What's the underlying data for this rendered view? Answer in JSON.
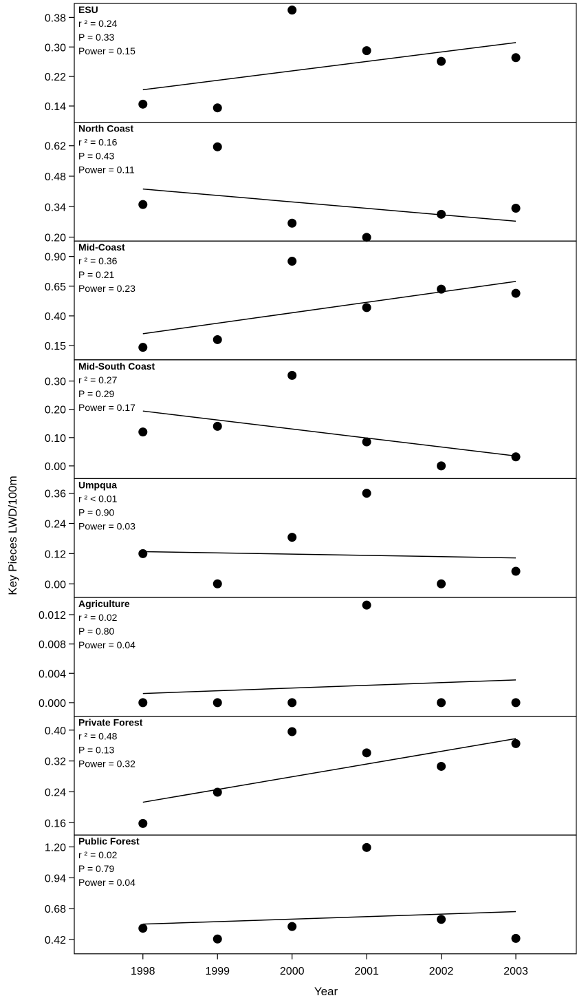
{
  "chart_data": {
    "type": "scatter",
    "xlabel": "Year",
    "ylabel": "Key Pieces LWD/100m",
    "x_ticks": [
      "1998",
      "1999",
      "2000",
      "2001",
      "2002",
      "2003"
    ],
    "xlim": [
      1997.08,
      2003.82
    ],
    "grid": false,
    "panels": [
      {
        "title": "ESU",
        "stats": [
          "r ² = 0.24",
          "P = 0.33",
          "Power = 0.15"
        ],
        "ylim": [
          0.096,
          0.418
        ],
        "yticks": [
          0.14,
          0.22,
          0.3,
          0.38
        ],
        "ytick_labels": [
          "0.14",
          "0.22",
          "0.30",
          "0.38"
        ],
        "x": [
          1998,
          1999,
          2000,
          2001,
          2002,
          2003
        ],
        "y": [
          0.145,
          0.135,
          0.4,
          0.29,
          0.261,
          0.271
        ],
        "fit": [
          [
            1998,
            0.184
          ],
          [
            2003,
            0.312
          ]
        ]
      },
      {
        "title": "North Coast",
        "stats": [
          " r ² = 0.16",
          " P = 0.43",
          " Power = 0.11"
        ],
        "ylim": [
          0.182,
          0.728
        ],
        "yticks": [
          0.2,
          0.34,
          0.48,
          0.62
        ],
        "ytick_labels": [
          "0.20",
          "0.34",
          "0.48",
          "0.62"
        ],
        "x": [
          1998,
          1999,
          2000,
          2001,
          2002,
          2003
        ],
        "y": [
          0.35,
          0.615,
          0.264,
          0.199,
          0.305,
          0.333
        ],
        "fit": [
          [
            1998,
            0.421
          ],
          [
            2003,
            0.273
          ]
        ]
      },
      {
        "title": "Mid-Coast",
        "stats": [
          " r ² = 0.36",
          "P = 0.21",
          "Power = 0.23"
        ],
        "ylim": [
          0.03,
          1.03
        ],
        "yticks": [
          0.15,
          0.4,
          0.65,
          0.9
        ],
        "ytick_labels": [
          "0.15",
          "0.40",
          "0.65",
          "0.90"
        ],
        "x": [
          1998,
          1999,
          2000,
          2001,
          2002,
          2003
        ],
        "y": [
          0.135,
          0.2,
          0.86,
          0.47,
          0.625,
          0.59
        ],
        "fit": [
          [
            1998,
            0.25
          ],
          [
            2003,
            0.69
          ]
        ]
      },
      {
        "title": "Mid-South Coast",
        "stats": [
          "r ² = 0.27",
          "P = 0.29",
          "Power = 0.17"
        ],
        "ylim": [
          -0.045,
          0.375
        ],
        "yticks": [
          0.0,
          0.1,
          0.2,
          0.3
        ],
        "ytick_labels": [
          "0.00",
          "0.10",
          "0.20",
          "0.30"
        ],
        "x": [
          1998,
          1999,
          2000,
          2001,
          2002,
          2003
        ],
        "y": [
          0.12,
          0.14,
          0.32,
          0.085,
          0.0,
          0.032
        ],
        "fit": [
          [
            1998,
            0.194
          ],
          [
            2003,
            0.035
          ]
        ]
      },
      {
        "title": "Umpqua",
        "stats": [
          "r ² < 0.01",
          " P = 0.90",
          " Power = 0.03"
        ],
        "ylim": [
          -0.054,
          0.418
        ],
        "yticks": [
          0.0,
          0.12,
          0.24,
          0.36
        ],
        "ytick_labels": [
          "0.00",
          "0.12",
          "0.24",
          "0.36"
        ],
        "x": [
          1998,
          1999,
          2000,
          2001,
          2002,
          2003
        ],
        "y": [
          0.12,
          0.0,
          0.185,
          0.36,
          0.0,
          0.05
        ],
        "fit": [
          [
            1998,
            0.128
          ],
          [
            2003,
            0.103
          ]
        ]
      },
      {
        "title": "Agriculture",
        "stats": [
          "r ² = 0.02",
          " P = 0.80",
          " Power = 0.04"
        ],
        "ylim": [
          -0.00185,
          0.01435
        ],
        "yticks": [
          0.0,
          0.004,
          0.008,
          0.012
        ],
        "ytick_labels": [
          "0.000",
          "0.004",
          "0.008",
          "0.012"
        ],
        "x": [
          1998,
          1999,
          2000,
          2001,
          2002,
          2003
        ],
        "y": [
          0.0,
          0.0,
          0.0,
          0.0133,
          0.0,
          0.0
        ],
        "fit": [
          [
            1998,
            0.00125
          ],
          [
            2003,
            0.0031
          ]
        ]
      },
      {
        "title": "Private Forest",
        "stats": [
          "r ² = 0.48",
          " P = 0.13",
          " Power = 0.32"
        ],
        "ylim": [
          0.128,
          0.436
        ],
        "yticks": [
          0.16,
          0.24,
          0.32,
          0.4
        ],
        "ytick_labels": [
          "0.16",
          "0.24",
          "0.32",
          "0.40"
        ],
        "x": [
          1998,
          1999,
          2000,
          2001,
          2002,
          2003
        ],
        "y": [
          0.158,
          0.239,
          0.396,
          0.341,
          0.306,
          0.365
        ],
        "fit": [
          [
            1998,
            0.213
          ],
          [
            2003,
            0.378
          ]
        ]
      },
      {
        "title": "Public Forest",
        "stats": [
          "r ² = 0.02",
          "P = 0.79",
          "Power = 0.04"
        ],
        "ylim": [
          0.3,
          1.3
        ],
        "yticks": [
          0.42,
          0.68,
          0.94,
          1.2
        ],
        "ytick_labels": [
          "0.42",
          "0.68",
          "0.94",
          "1.20"
        ],
        "x": [
          1998,
          1999,
          2000,
          2001,
          2002,
          2003
        ],
        "y": [
          0.515,
          0.425,
          0.53,
          1.195,
          0.59,
          0.43
        ],
        "fit": [
          [
            1998,
            0.55
          ],
          [
            2003,
            0.655
          ]
        ]
      }
    ]
  }
}
